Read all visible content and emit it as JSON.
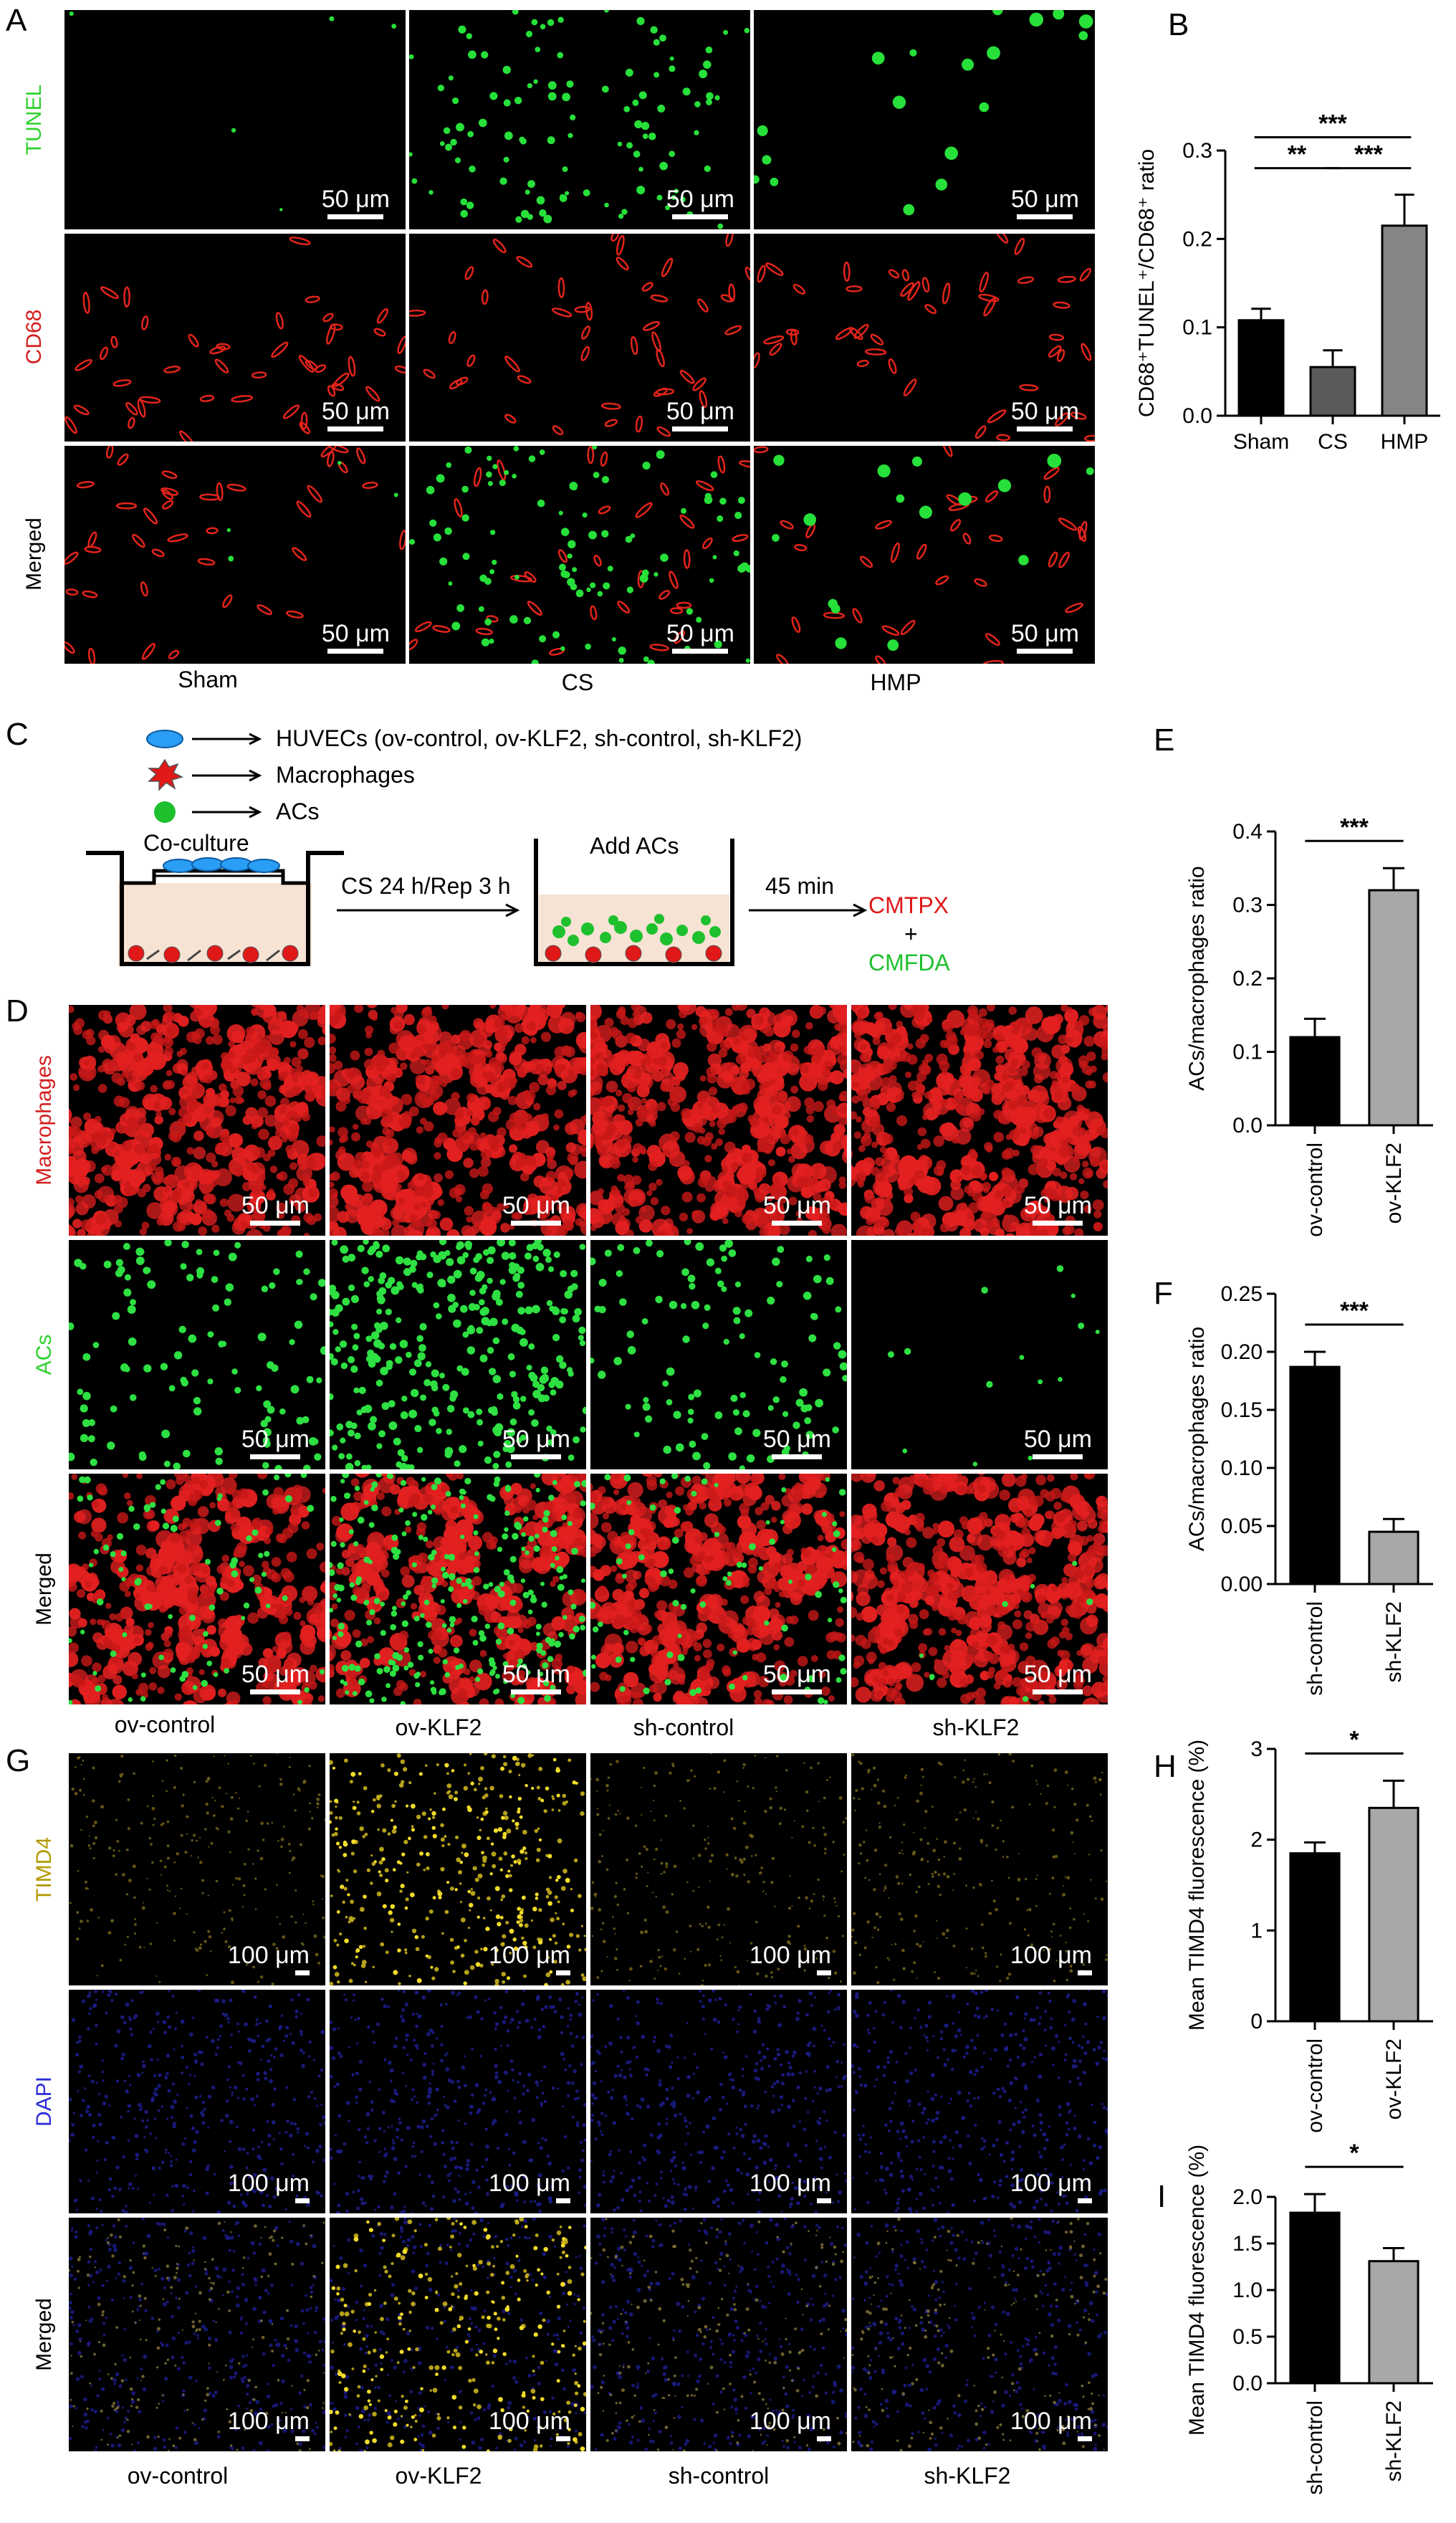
{
  "panels": {
    "A": {
      "letter": "A",
      "rows": [
        "TUNEL",
        "CD68",
        "Merged"
      ],
      "cols": [
        "Sham",
        "CS",
        "HMP"
      ],
      "scale": "50 μm",
      "row_colors": [
        "#2fd12f",
        "#d41f1f",
        "#000000"
      ]
    },
    "B": {
      "letter": "B"
    },
    "C": {
      "letter": "C",
      "legend": [
        "HUVECs (ov-control, ov-KLF2, sh-control, sh-KLF2)",
        "Macrophages",
        "ACs"
      ],
      "coculture": "Co-culture",
      "step1": "CS 24 h/Rep 3 h",
      "add_acs": "Add ACs",
      "step2": "45 min",
      "cmtpx": "CMTPX",
      "plus": "+",
      "cmfda": "CMFDA"
    },
    "D": {
      "letter": "D",
      "rows": [
        "Macrophages",
        "ACs",
        "Merged"
      ],
      "cols": [
        "ov-control",
        "ov-KLF2",
        "sh-control",
        "sh-KLF2"
      ],
      "scale": "50 μm"
    },
    "E": {
      "letter": "E"
    },
    "F": {
      "letter": "F"
    },
    "G": {
      "letter": "G",
      "rows": [
        "TIMD4",
        "DAPI",
        "Merged"
      ],
      "cols": [
        "ov-control",
        "ov-KLF2",
        "sh-control",
        "sh-KLF2"
      ],
      "scale": "100 μm"
    },
    "H": {
      "letter": "H"
    },
    "I": {
      "letter": "I"
    }
  },
  "chart_data": [
    {
      "id": "B",
      "type": "bar",
      "categories": [
        "Sham",
        "CS",
        "HMP"
      ],
      "values": [
        0.108,
        0.055,
        0.215
      ],
      "errors": [
        0.013,
        0.019,
        0.035
      ],
      "colors": [
        "#000000",
        "#5a5a5a",
        "#858585"
      ],
      "ylabel": "CD68⁺TUNEL⁺/CD68⁺ ratio",
      "ylim": [
        0,
        0.3
      ],
      "yticks": [
        "0.0",
        "0.1",
        "0.2",
        "0.3"
      ],
      "significance": [
        {
          "from": 0,
          "to": 2,
          "label": "***"
        },
        {
          "from": 0,
          "to": 1,
          "label": "**"
        },
        {
          "from": 1,
          "to": 2,
          "label": "***"
        }
      ]
    },
    {
      "id": "E",
      "type": "bar",
      "categories": [
        "ov-control",
        "ov-KLF2"
      ],
      "values": [
        0.12,
        0.32
      ],
      "errors": [
        0.025,
        0.03
      ],
      "colors": [
        "#000000",
        "#a8a8a8"
      ],
      "ylabel": "ACs/macrophages ratio",
      "ylim": [
        0,
        0.4
      ],
      "yticks": [
        "0.0",
        "0.1",
        "0.2",
        "0.3",
        "0.4"
      ],
      "significance": [
        {
          "from": 0,
          "to": 1,
          "label": "***"
        }
      ]
    },
    {
      "id": "F",
      "type": "bar",
      "categories": [
        "sh-control",
        "sh-KLF2"
      ],
      "values": [
        0.187,
        0.045
      ],
      "errors": [
        0.013,
        0.011
      ],
      "colors": [
        "#000000",
        "#a8a8a8"
      ],
      "ylabel": "ACs/macrophages ratio",
      "ylim": [
        0,
        0.25
      ],
      "yticks": [
        "0.00",
        "0.05",
        "0.10",
        "0.15",
        "0.20",
        "0.25"
      ],
      "significance": [
        {
          "from": 0,
          "to": 1,
          "label": "***"
        }
      ]
    },
    {
      "id": "H",
      "type": "bar",
      "categories": [
        "ov-control",
        "ov-KLF2"
      ],
      "values": [
        1.85,
        2.35
      ],
      "errors": [
        0.12,
        0.3
      ],
      "colors": [
        "#000000",
        "#a8a8a8"
      ],
      "ylabel": "Mean TIMD4 fluorescence (%)",
      "ylim": [
        0,
        3
      ],
      "yticks": [
        "0",
        "1",
        "2",
        "3"
      ],
      "significance": [
        {
          "from": 0,
          "to": 1,
          "label": "*"
        }
      ]
    },
    {
      "id": "I",
      "type": "bar",
      "categories": [
        "sh-control",
        "sh-KLF2"
      ],
      "values": [
        1.83,
        1.31
      ],
      "errors": [
        0.2,
        0.14
      ],
      "colors": [
        "#000000",
        "#a8a8a8"
      ],
      "ylabel": "Mean TIMD4 fluorescence (%)",
      "ylim": [
        0,
        2.0
      ],
      "yticks": [
        "0.0",
        "0.5",
        "1.0",
        "1.5",
        "2.0"
      ],
      "significance": [
        {
          "from": 0,
          "to": 1,
          "label": "*"
        }
      ]
    }
  ]
}
